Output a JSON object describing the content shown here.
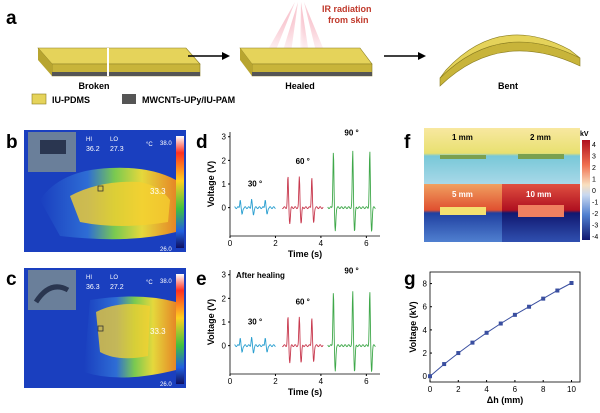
{
  "panel_a": {
    "label": "a",
    "ir_text": "IR radiation",
    "ir_text2": "from skin",
    "stage_labels": [
      "Broken",
      "Healed",
      "Bent"
    ],
    "legend": [
      "IU-PDMS",
      "MWCNTs-UPy/IU-PAM"
    ],
    "colors": {
      "pdms": "#d9c94a",
      "core": "#555555"
    }
  },
  "panel_b": {
    "label": "b",
    "hi_label": "HI",
    "hi_value": "36.2",
    "lo_label": "LO",
    "lo_value": "27.3",
    "unit": "°C",
    "scale_max": "38.0",
    "scale_min": "26.0",
    "spot_value": "33.3"
  },
  "panel_c": {
    "label": "c",
    "hi_label": "HI",
    "hi_value": "36.3",
    "lo_label": "LO",
    "lo_value": "27.2",
    "unit": "°C",
    "scale_max": "38.0",
    "scale_min": "26.0",
    "spot_value": "33.3"
  },
  "panel_f": {
    "label": "f",
    "cells": [
      "1 mm",
      "2 mm",
      "5 mm",
      "10 mm"
    ],
    "colorbar_unit": "kV",
    "colorbar_ticks": [
      "4",
      "3",
      "2",
      "1",
      "0",
      "-1",
      "-2",
      "-3",
      "-4"
    ]
  },
  "chart_data": [
    {
      "panel": "d",
      "type": "line",
      "title": "",
      "xlabel": "Time (s)",
      "ylabel": "Voltage (V)",
      "xlim": [
        0,
        6.6
      ],
      "ylim": [
        -1.2,
        3.2
      ],
      "xticks": [
        "0",
        "2",
        "4",
        "6"
      ],
      "yticks": [
        "0",
        "1",
        "2",
        "3"
      ],
      "annotations": [
        "30 °",
        "60 °",
        "90 °"
      ],
      "series": [
        {
          "color": "#2a9fd0",
          "x": [
            0.2,
            2.0
          ],
          "peaks": [
            0.45,
            0.95,
            1.55
          ],
          "pos": 0.35,
          "neg": -0.3
        },
        {
          "color": "#c83a4f",
          "x": [
            2.3,
            4.1
          ],
          "peaks": [
            2.55,
            3.05,
            3.6
          ],
          "pos": 1.3,
          "neg": -0.65
        },
        {
          "color": "#3fa84a",
          "x": [
            4.3,
            6.4
          ],
          "peaks": [
            4.55,
            5.4,
            6.15
          ],
          "pos": 2.4,
          "neg": -1.0
        }
      ]
    },
    {
      "panel": "e",
      "type": "line",
      "title": "After healing",
      "xlabel": "Time (s)",
      "ylabel": "Voltage (V)",
      "xlim": [
        0,
        6.6
      ],
      "ylim": [
        -1.2,
        3.2
      ],
      "xticks": [
        "0",
        "2",
        "4",
        "6"
      ],
      "yticks": [
        "0",
        "1",
        "2",
        "3"
      ],
      "annotations": [
        "30 °",
        "60 °",
        "90 °"
      ],
      "series": [
        {
          "color": "#2a9fd0",
          "x": [
            0.2,
            2.0
          ],
          "peaks": [
            0.45,
            0.95,
            1.55
          ],
          "pos": 0.35,
          "neg": -0.3
        },
        {
          "color": "#c83a4f",
          "x": [
            2.3,
            4.1
          ],
          "peaks": [
            2.55,
            3.05,
            3.6
          ],
          "pos": 1.2,
          "neg": -0.7
        },
        {
          "color": "#3fa84a",
          "x": [
            4.3,
            6.4
          ],
          "peaks": [
            4.55,
            5.4,
            6.15
          ],
          "pos": 2.3,
          "neg": -1.1
        }
      ]
    },
    {
      "panel": "g",
      "type": "line",
      "title": "",
      "xlabel": "Δh (mm)",
      "ylabel": "Voltage (kV)",
      "xlim": [
        0,
        10.6
      ],
      "ylim": [
        -0.5,
        9
      ],
      "xticks": [
        "0",
        "2",
        "4",
        "6",
        "8",
        "10"
      ],
      "yticks": [
        "0",
        "2",
        "4",
        "6",
        "8"
      ],
      "x": [
        0,
        1,
        2,
        3,
        4,
        5,
        6,
        7,
        8,
        9,
        10
      ],
      "y": [
        0,
        1.05,
        2.0,
        2.9,
        3.75,
        4.55,
        5.3,
        6.0,
        6.7,
        7.4,
        8.05
      ],
      "color": "#3a4fa0"
    }
  ]
}
